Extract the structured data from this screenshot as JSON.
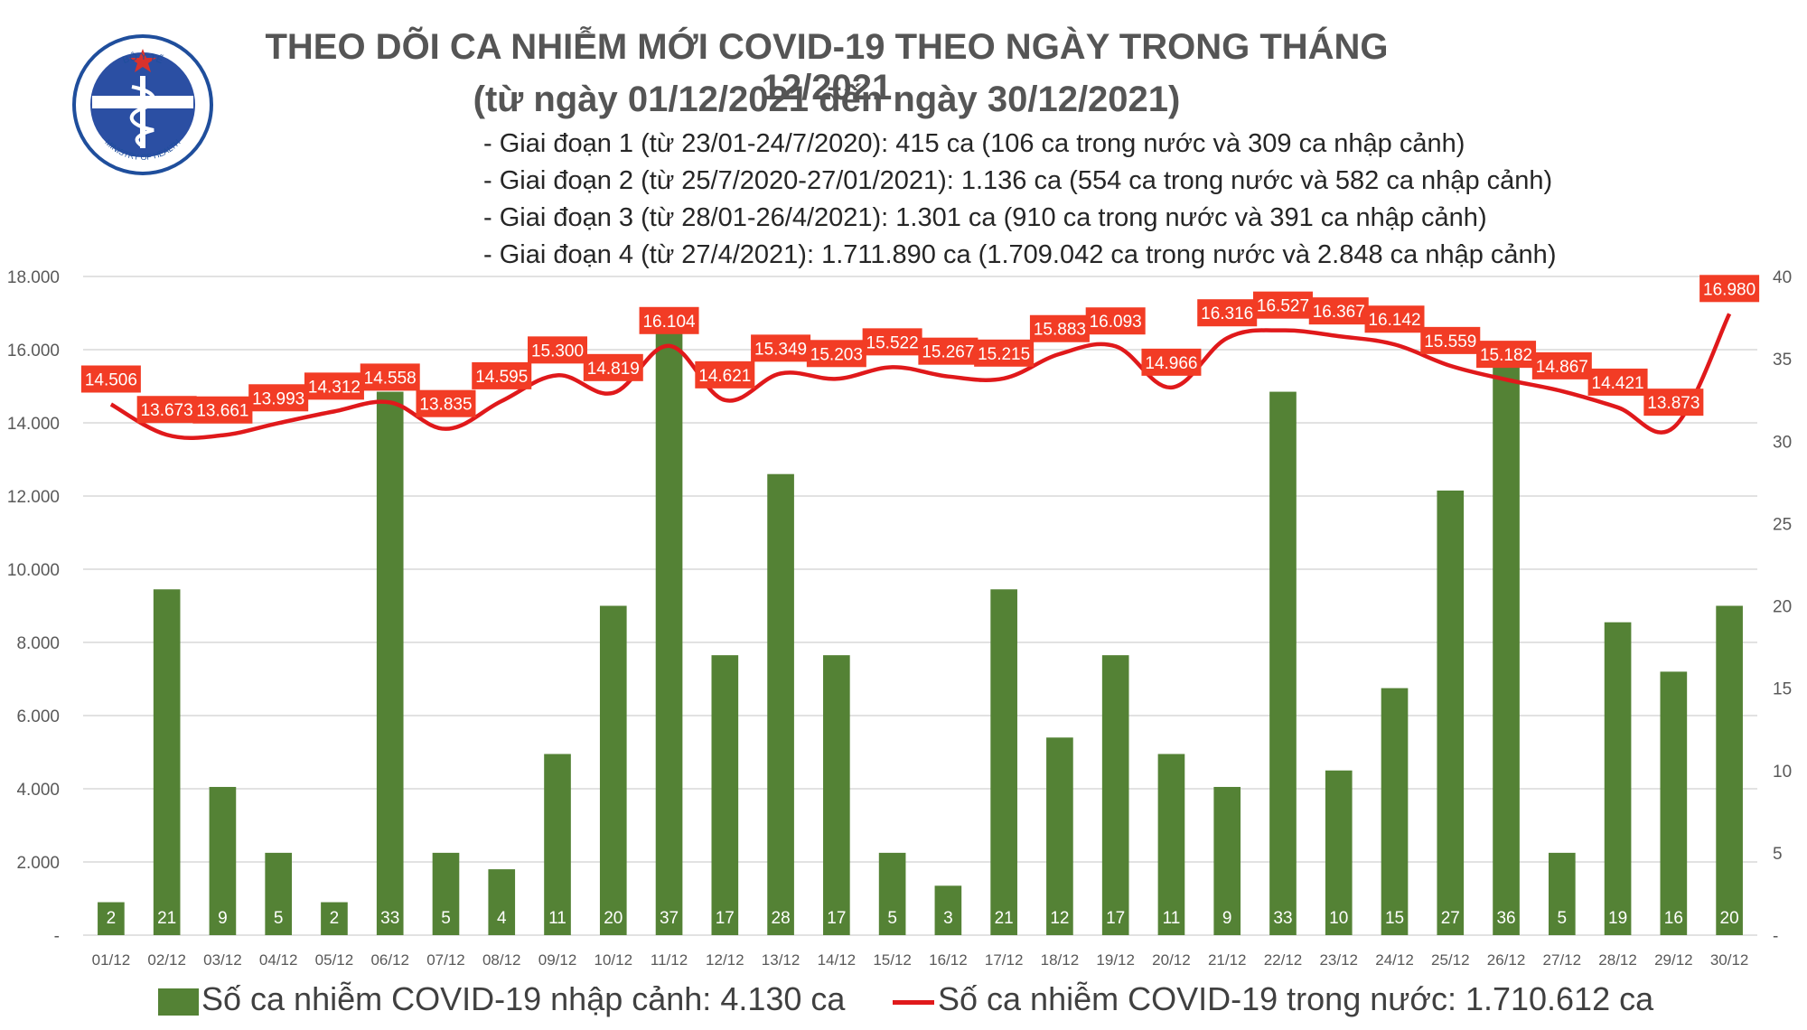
{
  "logo": {
    "top_text": "BỘ Y TẾ",
    "bottom_text": "MINISTRY OF HEALTH"
  },
  "title_line1": "THEO DÕI CA NHIỄM MỚI COVID-19 THEO NGÀY TRONG THÁNG 12/2021",
  "title_line2": "(từ ngày 01/12/2021 đến ngày 30/12/2021)",
  "phases": [
    "- Giai đoạn 1 (từ 23/01-24/7/2020): 415 ca (106 ca trong nước và 309 ca nhập cảnh)",
    "- Giai đoạn 2 (từ 25/7/2020-27/01/2021): 1.136 ca (554 ca trong nước và 582 ca nhập cảnh)",
    "- Giai đoạn 3 (từ 28/01-26/4/2021): 1.301 ca (910 ca trong nước và 391 ca nhập cảnh)",
    "- Giai đoạn 4 (từ 27/4/2021): 1.711.890 ca (1.709.042 ca trong nước và 2.848 ca nhập cảnh)"
  ],
  "legend": {
    "bar": "Số ca nhiễm COVID-19 nhập cảnh: 4.130 ca",
    "line": "Số ca nhiễm COVID-19 trong nước: 1.710.612 ca"
  },
  "colors": {
    "bar": "#548235",
    "line": "#e0191b",
    "label_box": "#f23c25",
    "grid": "#d9d9d9"
  },
  "chart_data": {
    "type": "bar+line",
    "categories": [
      "01/12",
      "02/12",
      "03/12",
      "04/12",
      "05/12",
      "06/12",
      "07/12",
      "08/12",
      "09/12",
      "10/12",
      "11/12",
      "12/12",
      "13/12",
      "14/12",
      "15/12",
      "16/12",
      "17/12",
      "18/12",
      "19/12",
      "20/12",
      "21/12",
      "22/12",
      "23/12",
      "24/12",
      "25/12",
      "26/12",
      "27/12",
      "28/12",
      "29/12",
      "30/12"
    ],
    "series": [
      {
        "name": "Số ca nhiễm COVID-19 nhập cảnh",
        "type": "bar",
        "axis": "right",
        "values": [
          2,
          21,
          9,
          5,
          2,
          33,
          5,
          4,
          11,
          20,
          37,
          17,
          28,
          17,
          5,
          3,
          21,
          12,
          17,
          11,
          9,
          33,
          10,
          15,
          27,
          36,
          5,
          19,
          16,
          20
        ],
        "labels": [
          "2",
          "21",
          "9",
          "5",
          "2",
          "33",
          "5",
          "4",
          "11",
          "20",
          "37",
          "17",
          "28",
          "17",
          "5",
          "3",
          "21",
          "12",
          "17",
          "11",
          "9",
          "33",
          "10",
          "15",
          "27",
          "36",
          "5",
          "19",
          "16",
          "20"
        ]
      },
      {
        "name": "Số ca nhiễm COVID-19 trong nước",
        "type": "line",
        "axis": "left",
        "values": [
          14506,
          13673,
          13661,
          13993,
          14312,
          14558,
          13835,
          14595,
          15300,
          14819,
          16104,
          14621,
          15349,
          15203,
          15522,
          15267,
          15215,
          15883,
          16093,
          14966,
          16316,
          16527,
          16367,
          16142,
          15559,
          15182,
          14867,
          14421,
          13873,
          16980
        ],
        "labels": [
          "14.506",
          "13.673",
          "13.661",
          "13.993",
          "14.312",
          "14.558",
          "13.835",
          "14.595",
          "15.300",
          "14.819",
          "16.104",
          "14.621",
          "15.349",
          "15.203",
          "15.522",
          "15.267",
          "15.215",
          "15.883",
          "16.093",
          "14.966",
          "16.316",
          "16.527",
          "16.367",
          "16.142",
          "15.559",
          "15.182",
          "14.867",
          "14.421",
          "13.873",
          "16.980"
        ]
      }
    ],
    "left_axis": {
      "ylim": [
        0,
        18000
      ],
      "ticks": [
        "-",
        "2.000",
        "4.000",
        "6.000",
        "8.000",
        "10.000",
        "12.000",
        "14.000",
        "16.000",
        "18.000"
      ]
    },
    "right_axis": {
      "ylim": [
        0,
        40
      ],
      "ticks": [
        "-",
        "5",
        "10",
        "15",
        "20",
        "25",
        "30",
        "35",
        "40"
      ]
    },
    "grid": true,
    "legend_position": "bottom"
  }
}
